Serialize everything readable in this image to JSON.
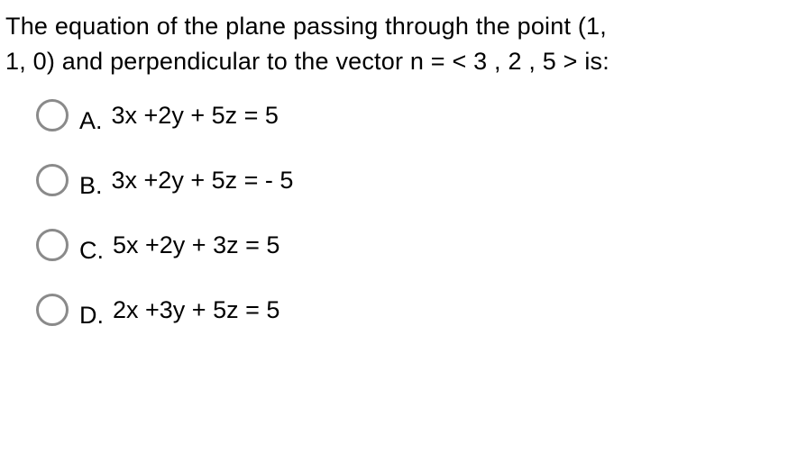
{
  "question": {
    "line1": "The equation of the plane passing through the point (1,",
    "line2": "1, 0) and perpendicular to the vector n = < 3 , 2 , 5 > is:"
  },
  "options": [
    {
      "letter": "A.",
      "text": "3x +2y + 5z = 5"
    },
    {
      "letter": "B.",
      "text": "3x +2y + 5z = - 5"
    },
    {
      "letter": "C.",
      "text": "5x +2y + 3z = 5"
    },
    {
      "letter": "D.",
      "text": "2x +3y + 5z = 5"
    }
  ],
  "styling": {
    "text_color": "#000000",
    "background_color": "#ffffff",
    "radio_border_color": "#8a8a8a",
    "radio_border_width": 3,
    "font_family": "Arial, Helvetica, sans-serif",
    "question_fontsize": 27,
    "option_fontsize": 27,
    "radio_diameter": 36
  }
}
